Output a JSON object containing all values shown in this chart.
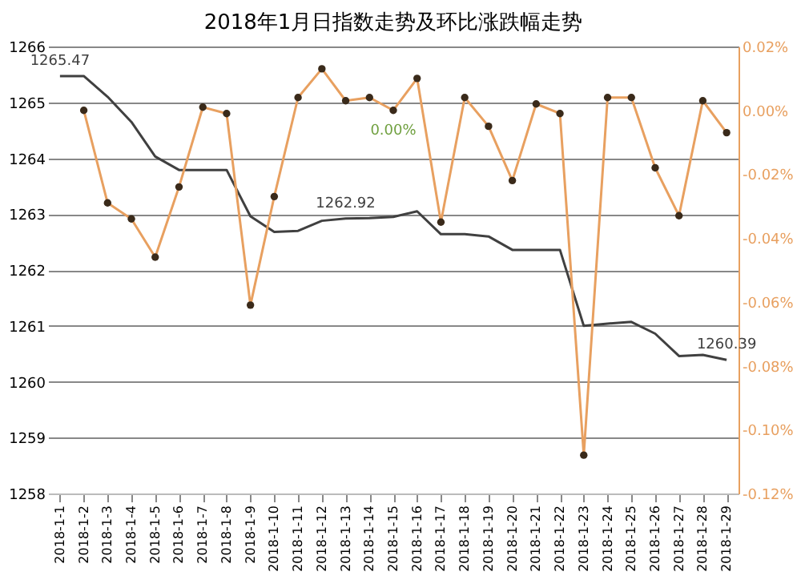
{
  "chart_data": {
    "type": "line",
    "title": "2018年1月日指数走势及环比涨跌幅走势",
    "categories": [
      "2018-1-1",
      "2018-1-2",
      "2018-1-3",
      "2018-1-4",
      "2018-1-5",
      "2018-1-6",
      "2018-1-7",
      "2018-1-8",
      "2018-1-9",
      "2018-1-10",
      "2018-1-11",
      "2018-1-12",
      "2018-1-13",
      "2018-1-14",
      "2018-1-15",
      "2018-1-16",
      "2018-1-17",
      "2018-1-18",
      "2018-1-19",
      "2018-1-20",
      "2018-1-21",
      "2018-1-22",
      "2018-1-23",
      "2018-1-24",
      "2018-1-25",
      "2018-1-26",
      "2018-1-27",
      "2018-1-28",
      "2018-1-29"
    ],
    "series": [
      {
        "type": "line",
        "color": "#404040",
        "marker": "none",
        "values": [
          1265.47,
          1265.47,
          1265.1,
          1264.65,
          1264.03,
          1263.79,
          1263.79,
          1263.79,
          1262.96,
          1262.68,
          1262.7,
          1262.88,
          1262.92,
          1262.93,
          1262.95,
          1263.05,
          1262.64,
          1262.64,
          1262.6,
          1262.36,
          1262.36,
          1262.36,
          1261.0,
          1261.04,
          1261.07,
          1260.86,
          1260.46,
          1260.48,
          1260.39
        ],
        "value_labels": [
          "1265.47",
          null,
          null,
          null,
          null,
          null,
          null,
          null,
          null,
          null,
          null,
          null,
          "1262.92",
          null,
          null,
          null,
          null,
          null,
          null,
          null,
          null,
          null,
          null,
          null,
          null,
          null,
          null,
          null,
          "1260.39"
        ]
      },
      {
        "type": "line",
        "axis": "y2",
        "color": "#e8a060",
        "marker": "circle",
        "values": [
          null,
          0.0,
          -0.029,
          -0.034,
          -0.046,
          -0.024,
          0.001,
          -0.001,
          -0.061,
          -0.027,
          0.004,
          0.013,
          0.003,
          0.004,
          0.0,
          0.01,
          -0.035,
          0.004,
          -0.005,
          -0.022,
          0.002,
          -0.001,
          -0.108,
          0.004,
          0.004,
          -0.018,
          -0.033,
          0.003,
          -0.007
        ],
        "value_labels": [
          null,
          null,
          null,
          null,
          null,
          null,
          null,
          null,
          null,
          null,
          null,
          null,
          null,
          null,
          "0.00%",
          null,
          null,
          null,
          null,
          null,
          null,
          null,
          null,
          null,
          null,
          null,
          null,
          null,
          null
        ]
      }
    ],
    "ylim": [
      1258,
      1266
    ],
    "yticks": [
      1258,
      1259,
      1260,
      1261,
      1262,
      1263,
      1264,
      1265,
      1266
    ],
    "y2lim": [
      -0.12,
      0.02
    ],
    "y2ticks": [
      {
        "value": -0.12,
        "label": "-0.12%"
      },
      {
        "value": -0.1,
        "label": "-0.10%"
      },
      {
        "value": -0.08,
        "label": "-0.08%"
      },
      {
        "value": -0.06,
        "label": "-0.06%"
      },
      {
        "value": -0.04,
        "label": "-0.04%"
      },
      {
        "value": -0.02,
        "label": "-0.02%"
      },
      {
        "value": 0.0,
        "label": "0.00%"
      },
      {
        "value": 0.02,
        "label": "0.02%"
      }
    ],
    "grid": "y"
  }
}
